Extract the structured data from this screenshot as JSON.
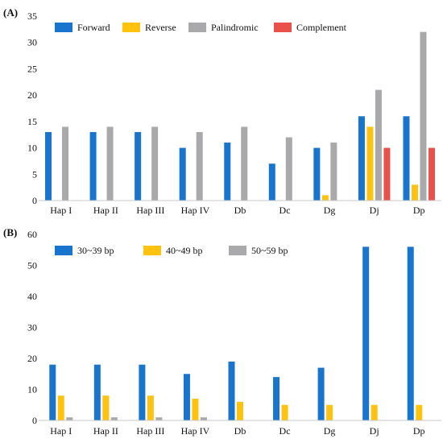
{
  "chart_data": [
    {
      "panel": "(A)",
      "type": "bar",
      "categories": [
        "Hap I",
        "Hap II",
        "Hap III",
        "Hap IV",
        "Db",
        "Dc",
        "Dg",
        "Dj",
        "Dp"
      ],
      "series": [
        {
          "name": "Forward",
          "color": "#1874CD",
          "values": [
            13,
            13,
            13,
            10,
            11,
            7,
            10,
            16,
            16
          ]
        },
        {
          "name": "Reverse",
          "color": "#FFC20E",
          "values": [
            0,
            0,
            0,
            0,
            0,
            0,
            1,
            14,
            3
          ]
        },
        {
          "name": "Palindromic",
          "color": "#A9A9AC",
          "values": [
            14,
            14,
            14,
            13,
            14,
            12,
            11,
            21,
            32
          ]
        },
        {
          "name": "Complement",
          "color": "#E8524A",
          "values": [
            0,
            0,
            0,
            0,
            0,
            0,
            0,
            10,
            10
          ]
        }
      ],
      "ylim": [
        0,
        35
      ],
      "yticks": [
        0,
        5,
        10,
        15,
        20,
        25,
        30,
        35
      ],
      "legend": "top"
    },
    {
      "panel": "(B)",
      "type": "bar",
      "categories": [
        "Hap I",
        "Hap II",
        "Hap III",
        "Hap IV",
        "Db",
        "Dc",
        "Dg",
        "Dj",
        "Dp"
      ],
      "series": [
        {
          "name": "30~39 bp",
          "color": "#1874CD",
          "values": [
            18,
            18,
            18,
            15,
            19,
            14,
            17,
            56,
            56
          ]
        },
        {
          "name": "40~49 bp",
          "color": "#FFC20E",
          "values": [
            8,
            8,
            8,
            7,
            6,
            5,
            5,
            5,
            5
          ]
        },
        {
          "name": "50~59 bp",
          "color": "#A9A9AC",
          "values": [
            1,
            1,
            1,
            1,
            0,
            0,
            0,
            0,
            0
          ]
        }
      ],
      "ylim": [
        0,
        60
      ],
      "yticks": [
        0,
        10,
        20,
        30,
        40,
        50,
        60
      ],
      "legend": "top"
    }
  ]
}
